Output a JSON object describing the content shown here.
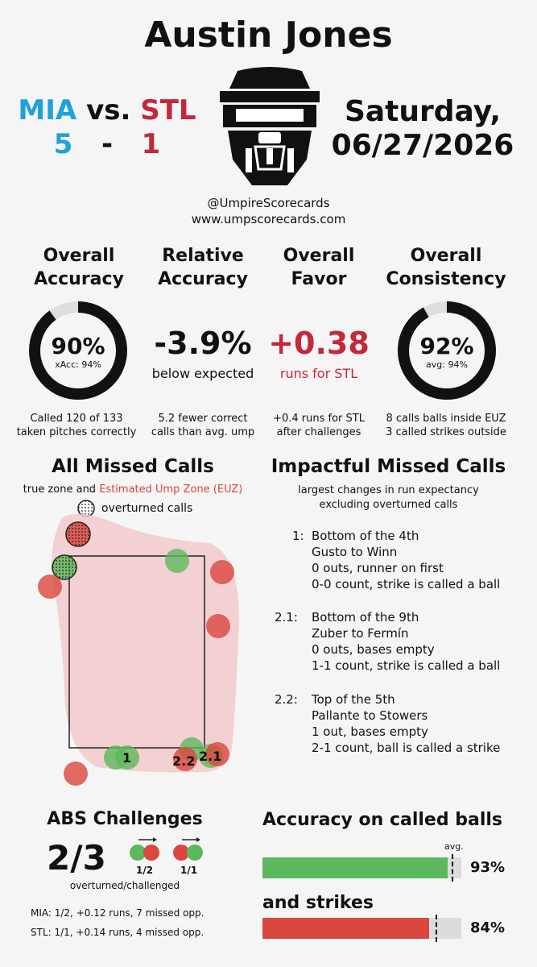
{
  "umpire": "Austin Jones",
  "teams": {
    "away": "MIA",
    "vs": "vs.",
    "home": "STL",
    "away_score": "5",
    "dash": "-",
    "home_score": "1"
  },
  "date": {
    "day": "Saturday,",
    "full": "06/27/2026"
  },
  "handle": "@UmpireScorecards",
  "website": "www.umpscorecards.com",
  "cards": {
    "accuracy": {
      "title1": "Overall",
      "title2": "Accuracy",
      "value": "90%",
      "sub": "xAcc: 94%",
      "fill": 0.9,
      "foot1": "Called 120 of 133",
      "foot2": "taken pitches correctly"
    },
    "relative": {
      "title1": "Relative",
      "title2": "Accuracy",
      "value": "-3.9%",
      "sub": "below expected",
      "foot1": "5.2 fewer correct",
      "foot2": "calls than avg. ump"
    },
    "favor": {
      "title1": "Overall",
      "title2": "Favor",
      "value": "+0.38",
      "sub": "runs for STL",
      "foot1": "+0.4 runs for STL",
      "foot2": "after challenges"
    },
    "consistency": {
      "title1": "Overall",
      "title2": "Consistency",
      "value": "92%",
      "sub": "avg: 94%",
      "fill": 0.92,
      "foot1": "8 calls balls inside EUZ",
      "foot2": "3 called strikes outside"
    }
  },
  "missed": {
    "title": "All Missed Calls",
    "sub_a": "true zone and ",
    "sub_b": "Estimated Ump Zone (EUZ)",
    "legend": "overturned calls",
    "labels": [
      "1",
      "2.2",
      "2.1"
    ]
  },
  "impactful": {
    "title": "Impactful Missed Calls",
    "sub1": "largest changes in run expectancy",
    "sub2": "excluding overturned calls",
    "items": [
      {
        "num": "1:",
        "l1": "Bottom of the 4th",
        "l2": "Gusto to Winn",
        "l3": "0 outs, runner on first",
        "l4": "0-0 count, strike is called a ball"
      },
      {
        "num": "2.1:",
        "l1": "Bottom of the 9th",
        "l2": "Zuber to Fermín",
        "l3": "0 outs, bases empty",
        "l4": "1-1 count, strike is called a ball"
      },
      {
        "num": "2.2:",
        "l1": "Top of the 5th",
        "l2": "Pallante to Stowers",
        "l3": "1 out, bases empty",
        "l4": "2-1 count, ball is called a strike"
      }
    ]
  },
  "abs": {
    "title": "ABS Challenges",
    "score": "2/3",
    "ratio1": "1/2",
    "ratio2": "1/1",
    "sub": "overturned/challenged",
    "mia": "MIA: 1/2, +0.12 runs, 7 missed opp.",
    "stl": "STL: 1/1, +0.14 runs, 4 missed opp."
  },
  "called": {
    "head1": "Accuracy on called balls",
    "avg_label": "avg.",
    "balls_pct": "93%",
    "balls_value": 0.93,
    "balls_avg": 0.95,
    "head2": "and strikes",
    "strikes_pct": "84%",
    "strikes_value": 0.84,
    "strikes_avg": 0.87
  },
  "colors": {
    "blue": "#1fa2dc",
    "red": "#c4283a",
    "green": "#5cb85c",
    "missred": "#d9473f",
    "euz": "#f2c9cb"
  }
}
